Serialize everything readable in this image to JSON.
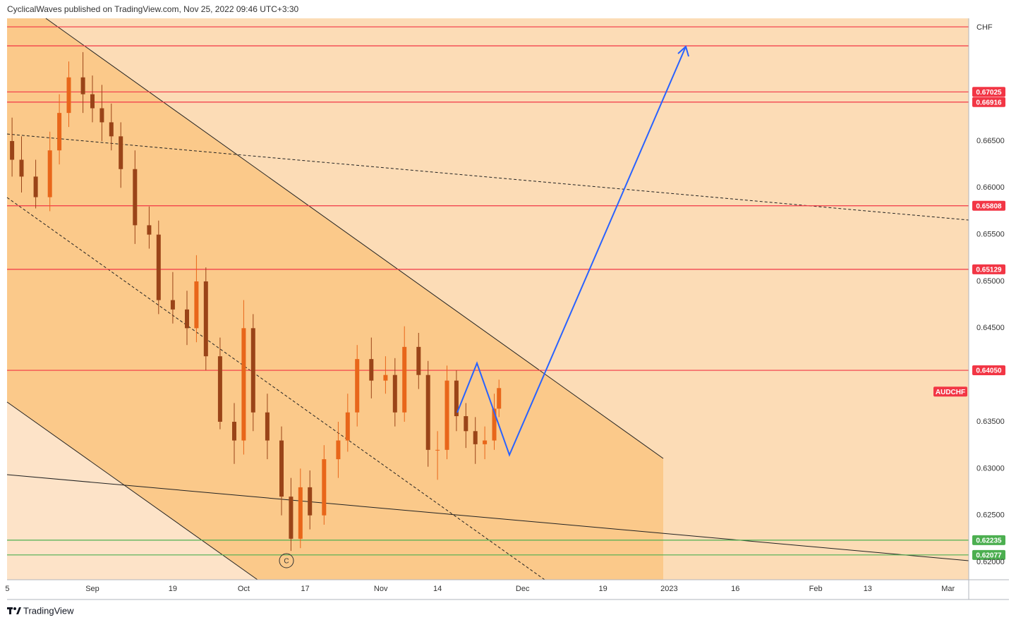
{
  "header": "CyclicalWaves published on TradingView.com, Nov 25, 2022 09:46 UTC+3:30",
  "footer": "TradingView",
  "chart_data": {
    "type": "candlestick",
    "symbol": "AUDCHF",
    "currency": "CHF",
    "annotation": "C",
    "up_color": "#e8661a",
    "down_color": "#9a4418",
    "xlim": [
      -18.06,
      185.37
    ],
    "ylim": [
      0.61812,
      0.67811
    ],
    "xticks": [
      {
        "value": -18,
        "label": "5"
      },
      {
        "value": 0,
        "label": "Sep"
      },
      {
        "value": 17,
        "label": "19"
      },
      {
        "value": 32,
        "label": "Oct"
      },
      {
        "value": 45,
        "label": "17"
      },
      {
        "value": 61,
        "label": "Nov"
      },
      {
        "value": 73,
        "label": "14"
      },
      {
        "value": 91,
        "label": "Dec"
      },
      {
        "value": 108,
        "label": "19"
      },
      {
        "value": 122,
        "label": "2023"
      },
      {
        "value": 136,
        "label": "16"
      },
      {
        "value": 153,
        "label": "Feb"
      },
      {
        "value": 164,
        "label": "13"
      },
      {
        "value": 181,
        "label": "Mar"
      }
    ],
    "yticks": [
      {
        "value": 0.665,
        "label": "0.66500"
      },
      {
        "value": 0.66,
        "label": "0.66000"
      },
      {
        "value": 0.655,
        "label": "0.65500"
      },
      {
        "value": 0.65,
        "label": "0.65000"
      },
      {
        "value": 0.645,
        "label": "0.64500"
      },
      {
        "value": 0.635,
        "label": "0.63500"
      },
      {
        "value": 0.63,
        "label": "0.63000"
      },
      {
        "value": 0.625,
        "label": "0.62500"
      },
      {
        "value": 0.62,
        "label": "0.62000"
      }
    ],
    "levels": [
      {
        "value": 0.6772,
        "color": "#f23645"
      },
      {
        "value": 0.67517,
        "color": "#f23645"
      },
      {
        "value": 0.67025,
        "label": "0.67025",
        "color": "#f23645"
      },
      {
        "value": 0.66916,
        "label": "0.66916",
        "color": "#f23645"
      },
      {
        "value": 0.65808,
        "label": "0.65808",
        "color": "#f23645"
      },
      {
        "value": 0.65129,
        "label": "0.65129",
        "color": "#f23645"
      },
      {
        "value": 0.6405,
        "label": "0.64050",
        "color": "#f23645"
      },
      {
        "value": 0.62235,
        "label": "0.62235",
        "color": "#4caf50"
      },
      {
        "value": 0.62077,
        "label": "0.62077",
        "color": "#4caf50"
      }
    ],
    "x": [
      -17,
      -15,
      -12,
      -9,
      -7,
      -5,
      -2,
      0,
      2,
      4,
      6,
      9,
      12,
      14,
      17,
      20,
      22,
      24,
      27,
      30,
      32,
      34,
      37,
      40,
      42,
      44,
      46,
      49,
      52,
      54,
      56,
      59,
      62,
      64,
      66,
      69,
      71,
      73,
      75,
      77,
      79,
      81,
      83,
      85,
      86
    ],
    "open": [
      0.665,
      0.663,
      0.6612,
      0.659,
      0.664,
      0.668,
      0.6718,
      0.67,
      0.6685,
      0.667,
      0.6655,
      0.662,
      0.656,
      0.655,
      0.648,
      0.647,
      0.645,
      0.65,
      0.642,
      0.635,
      0.633,
      0.645,
      0.636,
      0.633,
      0.627,
      0.6225,
      0.628,
      0.625,
      0.631,
      0.633,
      0.636,
      0.6417,
      0.6394,
      0.64,
      0.636,
      0.643,
      0.64,
      0.632,
      0.632,
      0.6394,
      0.6356,
      0.634,
      0.6326,
      0.633,
      0.6364
    ],
    "high": [
      0.6675,
      0.6655,
      0.663,
      0.666,
      0.67,
      0.6735,
      0.6745,
      0.672,
      0.671,
      0.669,
      0.667,
      0.664,
      0.658,
      0.6565,
      0.651,
      0.649,
      0.6528,
      0.6515,
      0.644,
      0.637,
      0.648,
      0.6465,
      0.638,
      0.6345,
      0.629,
      0.63,
      0.6298,
      0.6325,
      0.635,
      0.638,
      0.6432,
      0.644,
      0.642,
      0.6418,
      0.6452,
      0.6445,
      0.6415,
      0.634,
      0.641,
      0.6405,
      0.637,
      0.6355,
      0.6345,
      0.638,
      0.6395
    ],
    "low": [
      0.6612,
      0.6595,
      0.6578,
      0.6575,
      0.6625,
      0.6665,
      0.668,
      0.667,
      0.665,
      0.664,
      0.66,
      0.654,
      0.6535,
      0.6465,
      0.6455,
      0.6432,
      0.6435,
      0.6405,
      0.6342,
      0.6305,
      0.6315,
      0.634,
      0.631,
      0.625,
      0.6212,
      0.6215,
      0.6235,
      0.624,
      0.629,
      0.6318,
      0.6345,
      0.6375,
      0.638,
      0.6345,
      0.635,
      0.6385,
      0.6302,
      0.6288,
      0.631,
      0.634,
      0.6322,
      0.6305,
      0.631,
      0.632,
      0.6355
    ],
    "close": [
      0.663,
      0.6612,
      0.659,
      0.664,
      0.668,
      0.6718,
      0.67,
      0.6685,
      0.667,
      0.6655,
      0.662,
      0.656,
      0.655,
      0.648,
      0.647,
      0.645,
      0.65,
      0.642,
      0.635,
      0.633,
      0.645,
      0.636,
      0.633,
      0.627,
      0.6225,
      0.628,
      0.625,
      0.631,
      0.633,
      0.636,
      0.6417,
      0.6394,
      0.64,
      0.636,
      0.643,
      0.64,
      0.632,
      0.632,
      0.6394,
      0.6356,
      0.634,
      0.6326,
      0.633,
      0.6364,
      0.6386
    ]
  }
}
